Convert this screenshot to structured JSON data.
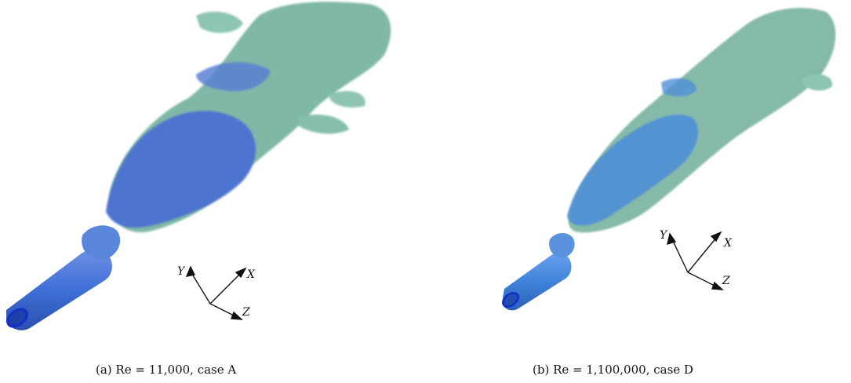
{
  "figure": {
    "panels": [
      {
        "id": "a",
        "caption": "(a)  Re = 11,000, case A",
        "axes": {
          "x": "X",
          "y": "Y",
          "z": "Z"
        },
        "colors": {
          "inner_isosurface": "#4d74cf",
          "outer_isosurface": "#7fb8a6",
          "nozzle": "#3f6fd6"
        }
      },
      {
        "id": "b",
        "caption": "(b)  Re = 1,100,000, case D",
        "axes": {
          "x": "X",
          "y": "Y",
          "z": "Z"
        },
        "colors": {
          "inner_isosurface": "#4f8fd6",
          "outer_isosurface": "#86baa8",
          "nozzle": "#3f83da"
        }
      }
    ]
  }
}
